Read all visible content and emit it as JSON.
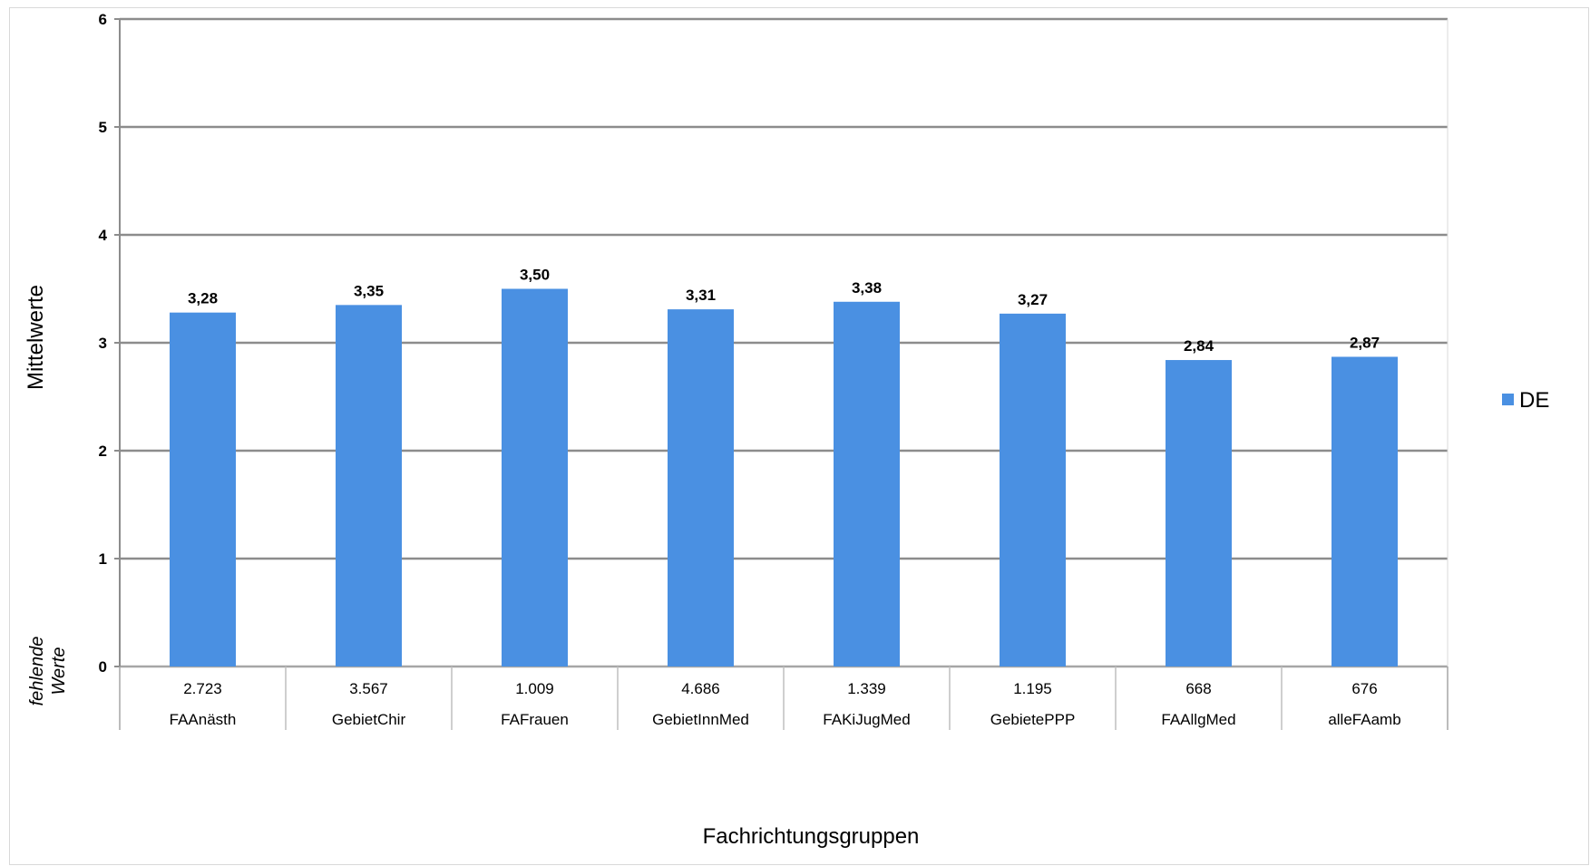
{
  "chart_data": {
    "type": "bar",
    "categories": [
      "FAAnästh",
      "GebietChir",
      "FAFrauen",
      "GebietInnMed",
      "FAKiJugMed",
      "GebietePPP",
      "FAAllgMed",
      "alleFAamb"
    ],
    "series": [
      {
        "name": "DE",
        "values": [
          3.28,
          3.35,
          3.5,
          3.31,
          3.38,
          3.27,
          2.84,
          2.87
        ],
        "labels": [
          "3,28",
          "3,35",
          "3,50",
          "3,31",
          "3,38",
          "3,27",
          "2,84",
          "2,87"
        ],
        "color": "#4a90e2"
      }
    ],
    "missing_values_title": "fehlende Werte",
    "missing_values_line1": "fehlende",
    "missing_values_line2": "Werte",
    "missing_values": [
      "2.723",
      "3.567",
      "1.009",
      "4.686",
      "1.339",
      "1.195",
      "668",
      "676"
    ],
    "xlabel": "Fachrichtungsgruppen",
    "ylabel": "Mittelwerte",
    "ylim": [
      0,
      6
    ],
    "yticks": [
      "0",
      "1",
      "2",
      "3",
      "4",
      "5",
      "6"
    ],
    "grid": true,
    "legend_position": "right"
  }
}
